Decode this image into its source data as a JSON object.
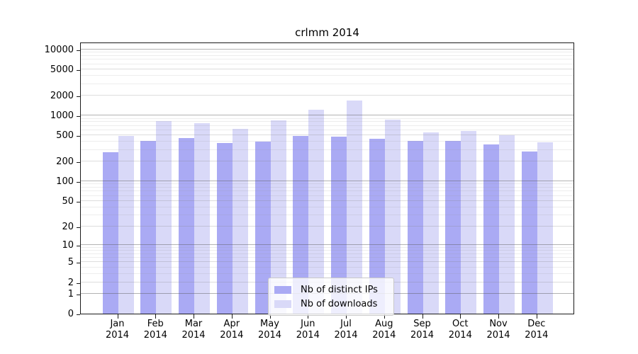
{
  "chart_data": {
    "type": "bar",
    "title": "crlmm 2014",
    "scale": "log1p",
    "grid": true,
    "legend_position": "lower center",
    "ylim": [
      0,
      10000
    ],
    "categories": [
      "Jan",
      "Feb",
      "Mar",
      "Apr",
      "May",
      "Jun",
      "Jul",
      "Aug",
      "Sep",
      "Oct",
      "Nov",
      "Dec"
    ],
    "category_year": "2014",
    "y_ticks": [
      0,
      1,
      2,
      5,
      10,
      20,
      50,
      100,
      200,
      500,
      1000,
      2000,
      5000,
      10000
    ],
    "y_major_ticks": [
      1,
      10,
      100,
      1000,
      10000
    ],
    "y_minor_ticks": [
      3,
      4,
      6,
      7,
      8,
      9,
      30,
      40,
      60,
      70,
      80,
      90,
      300,
      400,
      600,
      700,
      800,
      900,
      3000,
      4000,
      6000,
      7000,
      8000,
      9000
    ],
    "series": [
      {
        "key": "distinct-ips",
        "name": "Nb of distinct IPs",
        "color": "#aaaaf4",
        "values": [
          277,
          415,
          458,
          380,
          402,
          487,
          477,
          441,
          410,
          410,
          365,
          282
        ]
      },
      {
        "key": "downloads",
        "name": "Nb of downloads",
        "color": "#d9d9f8",
        "values": [
          494,
          831,
          765,
          633,
          846,
          1214,
          1689,
          867,
          560,
          588,
          507,
          393
        ]
      }
    ]
  }
}
